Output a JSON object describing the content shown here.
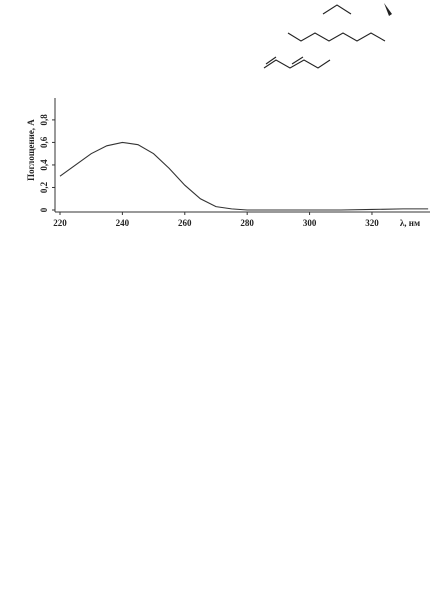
{
  "chart_data": {
    "type": "line",
    "ylabel": "Поглощение, A",
    "xlabel": "λ, нм",
    "x": [
      220,
      225,
      230,
      235,
      240,
      245,
      250,
      255,
      260,
      265,
      270,
      275,
      280,
      290,
      300,
      310,
      320,
      330,
      338
    ],
    "series": [
      {
        "color": "#333333",
        "values": [
          0.3,
          0.4,
          0.5,
          0.57,
          0.6,
          0.58,
          0.5,
          0.37,
          0.22,
          0.1,
          0.03,
          0.01,
          0,
          0,
          0,
          0,
          0.005,
          0.01,
          0.01
        ]
      }
    ],
    "xlim": [
      218.4,
      338.6
    ],
    "xticks": [
      220,
      240,
      260,
      280,
      300,
      320
    ],
    "ylim": [
      0,
      0.95
    ],
    "yticks": [
      0,
      {
        "value": 0.2,
        "label": "0,2"
      },
      {
        "value": 0.4,
        "label": "0,4"
      },
      {
        "value": 0.6,
        "label": "0,6"
      },
      {
        "value": 0.8,
        "label": "0,8"
      }
    ]
  }
}
